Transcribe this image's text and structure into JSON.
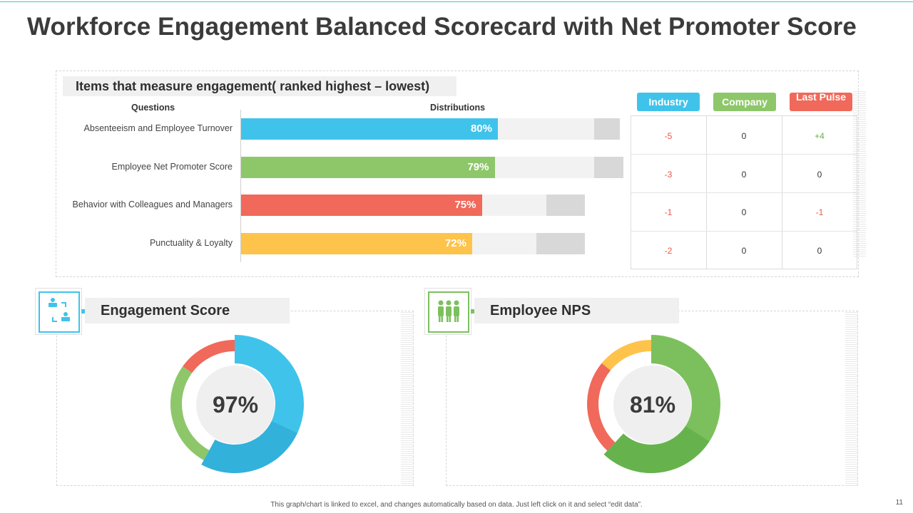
{
  "slide": {
    "title": "Workforce Engagement Balanced Scorecard with Net Promoter Score",
    "footer": "This graph/chart is linked to excel, and changes automatically based on data. Just left click on it and select “edit data”.",
    "page_number": "11"
  },
  "colors": {
    "blue": "#40c3ea",
    "green": "#8dc76a",
    "red": "#f0695a",
    "yellow": "#fec34a"
  },
  "chart_data": [
    {
      "type": "bar",
      "orientation": "horizontal",
      "title": "Items that measure engagement( ranked highest – lowest)",
      "xlabel": "Distributions",
      "ylabel": "Questions",
      "categories": [
        "Absenteeism and Employee Turnover",
        "Employee Net Promoter Score",
        "Behavior with Colleagues and Managers",
        "Punctuality  & Loyalty"
      ],
      "values": [
        80,
        79,
        75,
        72
      ],
      "value_labels": [
        "80%",
        "79%",
        "75%",
        "72%"
      ],
      "series_colors": [
        "#40c3ea",
        "#8dc76a",
        "#f0695a",
        "#fec34a"
      ],
      "background_extent": [
        118,
        119,
        107,
        107
      ],
      "background_tail": [
        8,
        9,
        12,
        15
      ]
    },
    {
      "type": "table",
      "columns": [
        "Industry",
        "Company",
        "Last Pulse"
      ],
      "column_colors": [
        "#40c3ea",
        "#8dc76a",
        "#f0695a"
      ],
      "rows": [
        [
          "-5",
          "0",
          "+4"
        ],
        [
          "-3",
          "0",
          "0"
        ],
        [
          "-1",
          "0",
          "-1"
        ],
        [
          "-2",
          "0",
          "0"
        ]
      ],
      "row_colors": [
        [
          "#e8584a",
          "#333333",
          "#6ab04c"
        ],
        [
          "#e8584a",
          "#333333",
          "#333333"
        ],
        [
          "#e8584a",
          "#333333",
          "#e8584a"
        ],
        [
          "#e8584a",
          "#333333",
          "#333333"
        ]
      ]
    },
    {
      "type": "pie",
      "style": "donut",
      "title": "Engagement Score",
      "center_label": "97%",
      "segments": [
        {
          "name": "main",
          "value": 58,
          "color": "#40c3ea"
        },
        {
          "name": "green",
          "value": 27,
          "color": "#8dc76a"
        },
        {
          "name": "red",
          "value": 15,
          "color": "#f0695a"
        }
      ]
    },
    {
      "type": "pie",
      "style": "donut",
      "title": "Employee NPS",
      "center_label": "81%",
      "segments": [
        {
          "name": "main",
          "value": 62,
          "color": "#7cc05e"
        },
        {
          "name": "red",
          "value": 24,
          "color": "#f0695a"
        },
        {
          "name": "yellow",
          "value": 14,
          "color": "#fec34a"
        }
      ]
    }
  ]
}
